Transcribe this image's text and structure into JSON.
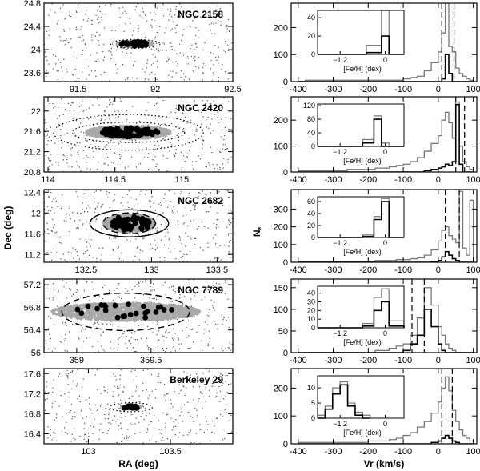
{
  "figure": {
    "xlabel_left": "RA (deg)",
    "ylabel_left": "Dec (deg)",
    "xlabel_right": "Vr (km/s)",
    "ylabel_right": "N",
    "ylabel_right_sub": "*",
    "inset_xlabel": "[Fe/H] (dex)"
  },
  "chart_data": [
    {
      "type": "scatter",
      "cluster": "NGC 2158",
      "xlim": [
        91.28,
        92.5
      ],
      "ylim": [
        23.45,
        24.8
      ],
      "xticks": [
        91.5,
        92,
        92.5
      ],
      "yticks": [
        23.6,
        24,
        24.4,
        24.8
      ],
      "center": [
        91.87,
        24.1
      ],
      "core": [
        0.12,
        0.05
      ],
      "members": [
        0.09,
        0.04
      ],
      "n_members": 20,
      "ellipses": [
        {
          "rx": 0.16,
          "ry": 0.075,
          "style": "dotted"
        }
      ]
    },
    {
      "type": "scatter",
      "cluster": "NGC 2420",
      "xlim": [
        113.97,
        115.38
      ],
      "ylim": [
        20.8,
        22.28
      ],
      "xticks": [
        114,
        114.5,
        115
      ],
      "yticks": [
        20.8,
        21.2,
        21.6,
        22
      ],
      "center": [
        114.6,
        21.58
      ],
      "core": [
        0.32,
        0.13
      ],
      "members": [
        0.22,
        0.09
      ],
      "n_members": 80,
      "ellipses": [
        {
          "rx": 0.42,
          "ry": 0.2,
          "style": "dotted"
        },
        {
          "rx": 0.56,
          "ry": 0.35,
          "style": "dotted"
        }
      ]
    },
    {
      "type": "scatter",
      "cluster": "NGC 2682",
      "xlim": [
        132.18,
        133.62
      ],
      "ylim": [
        11.05,
        12.45
      ],
      "xticks": [
        132.5,
        133,
        133.5
      ],
      "yticks": [
        11.2,
        11.6,
        12,
        12.4
      ],
      "center": [
        132.83,
        11.8
      ],
      "core": [
        0.2,
        0.17
      ],
      "members": [
        0.17,
        0.14
      ],
      "n_members": 55,
      "ellipses": [
        {
          "rx": 0.2,
          "ry": 0.2,
          "style": "dashed"
        },
        {
          "rx": 0.3,
          "ry": 0.26,
          "style": "solid"
        }
      ]
    },
    {
      "type": "scatter",
      "cluster": "NGC 7789",
      "xlim": [
        358.78,
        360.05
      ],
      "ylim": [
        56.0,
        57.3
      ],
      "xticks": [
        359,
        359.5
      ],
      "yticks": [
        56,
        56.4,
        56.8,
        57.2
      ],
      "center": [
        359.33,
        56.72
      ],
      "core": [
        0.5,
        0.16
      ],
      "members": [
        0.38,
        0.14
      ],
      "n_members": 24,
      "ellipses": [
        {
          "rx": 0.43,
          "ry": 0.33,
          "style": "dashed"
        }
      ]
    },
    {
      "type": "scatter",
      "cluster": "Berkeley 29",
      "xlim": [
        102.73,
        103.88
      ],
      "ylim": [
        16.2,
        17.7
      ],
      "xticks": [
        103,
        103.5
      ],
      "yticks": [
        16.4,
        16.8,
        17.2,
        17.6
      ],
      "center": [
        103.26,
        16.93
      ],
      "core": [
        0.06,
        0.04
      ],
      "members": [
        0.05,
        0.03
      ],
      "n_members": 14,
      "ellipses": [
        {
          "rx": 0.13,
          "ry": 0.09,
          "style": "dotted"
        }
      ]
    },
    {
      "type": "histogram",
      "cluster": "NGC 2158",
      "xlim": [
        -420,
        110
      ],
      "ylim": [
        0,
        290
      ],
      "xticks": [
        -400,
        -300,
        -200,
        -100,
        0,
        100
      ],
      "yticks": [
        0,
        100,
        200
      ],
      "bins_x": [
        -400,
        -380,
        -360,
        -340,
        -320,
        -300,
        -280,
        -260,
        -240,
        -220,
        -200,
        -180,
        -160,
        -140,
        -120,
        -100,
        -80,
        -60,
        -40,
        -20,
        0,
        10,
        20,
        30,
        40,
        50,
        60,
        70,
        80,
        90,
        100
      ],
      "all": [
        0,
        5,
        5,
        5,
        5,
        5,
        5,
        5,
        5,
        5,
        5,
        5,
        5,
        5,
        5,
        10,
        15,
        20,
        40,
        70,
        110,
        180,
        290,
        130,
        110,
        50,
        30,
        20,
        10,
        5
      ],
      "members": [
        0,
        0,
        0,
        0,
        0,
        0,
        0,
        0,
        0,
        0,
        0,
        0,
        0,
        0,
        0,
        0,
        0,
        0,
        0,
        0,
        0,
        10,
        100,
        30,
        0,
        0,
        0,
        0,
        0,
        0
      ],
      "vlines": [
        10,
        45
      ],
      "inset": {
        "xlim": [
          -1.8,
          0.5
        ],
        "ylim": [
          0,
          48
        ],
        "xticks": [
          -1.2,
          0
        ],
        "yticks": [
          0,
          20,
          40
        ],
        "bins_x": [
          -1.8,
          -0.5,
          -0.1,
          0.1,
          0.5
        ],
        "all": [
          0,
          10,
          48,
          0
        ],
        "members": [
          0,
          2,
          20,
          0
        ]
      }
    },
    {
      "type": "histogram",
      "cluster": "NGC 2420",
      "xlim": [
        -420,
        110
      ],
      "ylim": [
        0,
        290
      ],
      "xticks": [
        -400,
        -300,
        -200,
        -100,
        0,
        100
      ],
      "yticks": [
        0,
        100,
        200
      ],
      "bins_x": [
        -400,
        -380,
        -360,
        -340,
        -320,
        -300,
        -280,
        -260,
        -240,
        -220,
        -200,
        -180,
        -160,
        -140,
        -120,
        -100,
        -80,
        -60,
        -40,
        -20,
        0,
        10,
        20,
        30,
        40,
        50,
        60,
        70,
        80,
        90,
        100
      ],
      "all": [
        5,
        5,
        5,
        5,
        5,
        5,
        5,
        10,
        10,
        10,
        10,
        15,
        15,
        20,
        25,
        30,
        40,
        55,
        80,
        110,
        140,
        200,
        230,
        190,
        130,
        270,
        100,
        40,
        20,
        10
      ],
      "members": [
        0,
        0,
        0,
        0,
        0,
        0,
        0,
        0,
        0,
        0,
        0,
        0,
        0,
        0,
        0,
        0,
        0,
        0,
        5,
        10,
        15,
        20,
        30,
        25,
        40,
        260,
        30,
        0,
        0,
        0
      ],
      "vlines": [
        50,
        75
      ],
      "inset": {
        "xlim": [
          -1.8,
          0.5
        ],
        "ylim": [
          0,
          125
        ],
        "xticks": [
          -1.2,
          0
        ],
        "yticks": [
          0,
          40,
          80,
          120
        ],
        "bins_x": [
          -1.8,
          -0.6,
          -0.3,
          -0.1,
          0.1,
          0.5
        ],
        "all": [
          0,
          20,
          90,
          10,
          0
        ],
        "members": [
          0,
          10,
          80,
          0,
          0
        ]
      }
    },
    {
      "type": "histogram",
      "cluster": "NGC 2682",
      "xlim": [
        -420,
        110
      ],
      "ylim": [
        0,
        410
      ],
      "xticks": [
        -400,
        -300,
        -200,
        -100,
        0,
        100
      ],
      "yticks": [
        0,
        100,
        200,
        300
      ],
      "bins_x": [
        -400,
        -380,
        -360,
        -340,
        -320,
        -300,
        -280,
        -260,
        -240,
        -220,
        -200,
        -180,
        -160,
        -140,
        -120,
        -100,
        -80,
        -60,
        -40,
        -20,
        0,
        10,
        20,
        30,
        40,
        50,
        60,
        70,
        80,
        90,
        100
      ],
      "all": [
        5,
        5,
        5,
        5,
        5,
        5,
        5,
        5,
        5,
        5,
        5,
        10,
        10,
        10,
        15,
        15,
        20,
        25,
        40,
        70,
        120,
        180,
        200,
        150,
        130,
        110,
        400,
        80,
        40,
        350
      ],
      "members": [
        0,
        0,
        0,
        0,
        0,
        0,
        0,
        0,
        0,
        0,
        0,
        0,
        0,
        0,
        0,
        0,
        0,
        0,
        0,
        5,
        10,
        30,
        60,
        40,
        20,
        10,
        0,
        0,
        0,
        0
      ],
      "vlines": [
        20,
        60
      ],
      "inset": {
        "xlim": [
          -1.8,
          0.5
        ],
        "ylim": [
          0,
          68
        ],
        "xticks": [
          -1.2,
          0
        ],
        "yticks": [
          0,
          20,
          40,
          60
        ],
        "bins_x": [
          -1.8,
          -0.6,
          -0.3,
          -0.1,
          0.1,
          0.5
        ],
        "all": [
          0,
          5,
          35,
          65,
          0
        ],
        "members": [
          0,
          2,
          30,
          60,
          0
        ]
      }
    },
    {
      "type": "histogram",
      "cluster": "NGC 7789",
      "xlim": [
        -420,
        110
      ],
      "ylim": [
        0,
        170
      ],
      "xticks": [
        -400,
        -300,
        -200,
        -100,
        0,
        100
      ],
      "yticks": [
        0,
        50,
        100,
        150
      ],
      "bins_x": [
        -400,
        -380,
        -360,
        -340,
        -320,
        -300,
        -280,
        -260,
        -240,
        -220,
        -200,
        -180,
        -160,
        -140,
        -120,
        -100,
        -80,
        -60,
        -40,
        -20,
        0,
        10,
        20,
        30,
        40,
        50,
        60,
        70,
        80,
        90,
        100
      ],
      "all": [
        0,
        0,
        0,
        0,
        0,
        0,
        0,
        0,
        0,
        0,
        0,
        5,
        5,
        10,
        15,
        20,
        40,
        80,
        150,
        110,
        60,
        40,
        20,
        10,
        5,
        0,
        0,
        0,
        0,
        0
      ],
      "members": [
        0,
        0,
        0,
        0,
        0,
        0,
        0,
        0,
        0,
        0,
        0,
        0,
        0,
        0,
        0,
        5,
        20,
        40,
        100,
        60,
        20,
        5,
        0,
        0,
        0,
        0,
        0,
        0,
        0,
        0
      ],
      "vlines": [
        -75,
        -40
      ],
      "inset": {
        "xlim": [
          -1.8,
          0.5
        ],
        "ylim": [
          0,
          48
        ],
        "xticks": [
          -1.2,
          0
        ],
        "yticks": [
          0,
          10,
          20,
          30,
          40
        ],
        "bins_x": [
          -1.8,
          -0.6,
          -0.3,
          -0.1,
          0.1,
          0.5
        ],
        "all": [
          0,
          5,
          35,
          45,
          8
        ],
        "members": [
          0,
          2,
          20,
          30,
          2
        ]
      }
    },
    {
      "type": "histogram",
      "cluster": "Berkeley 29",
      "xlim": [
        -420,
        110
      ],
      "ylim": [
        0,
        270
      ],
      "xticks": [
        -400,
        -300,
        -200,
        -100,
        0,
        100
      ],
      "yticks": [
        0,
        100,
        200
      ],
      "bins_x": [
        -400,
        -380,
        -360,
        -340,
        -320,
        -300,
        -280,
        -260,
        -240,
        -220,
        -200,
        -180,
        -160,
        -140,
        -120,
        -100,
        -80,
        -60,
        -40,
        -20,
        0,
        10,
        20,
        30,
        40,
        50,
        60,
        70,
        80,
        90,
        100
      ],
      "all": [
        5,
        5,
        5,
        5,
        5,
        5,
        5,
        5,
        5,
        5,
        10,
        10,
        10,
        15,
        20,
        30,
        40,
        60,
        80,
        110,
        150,
        200,
        240,
        190,
        120,
        80,
        50,
        30,
        20,
        10
      ],
      "members": [
        0,
        0,
        0,
        0,
        0,
        0,
        0,
        0,
        0,
        0,
        0,
        0,
        0,
        0,
        0,
        0,
        0,
        0,
        0,
        5,
        10,
        20,
        30,
        20,
        10,
        5,
        0,
        0,
        0,
        0
      ],
      "vlines": [
        10,
        40
      ],
      "inset": {
        "xlim": [
          -1.8,
          0.5
        ],
        "ylim": [
          0,
          14
        ],
        "xticks": [
          -1.2,
          0
        ],
        "yticks": [
          0,
          5,
          10
        ],
        "bins_x": [
          -1.8,
          -1.6,
          -1.4,
          -1.2,
          -1.0,
          -0.8,
          -0.6,
          -0.4
        ],
        "all": [
          1,
          4,
          10,
          12,
          5,
          2,
          1
        ],
        "members": [
          0,
          3,
          8,
          11,
          4,
          1,
          0
        ]
      }
    }
  ]
}
